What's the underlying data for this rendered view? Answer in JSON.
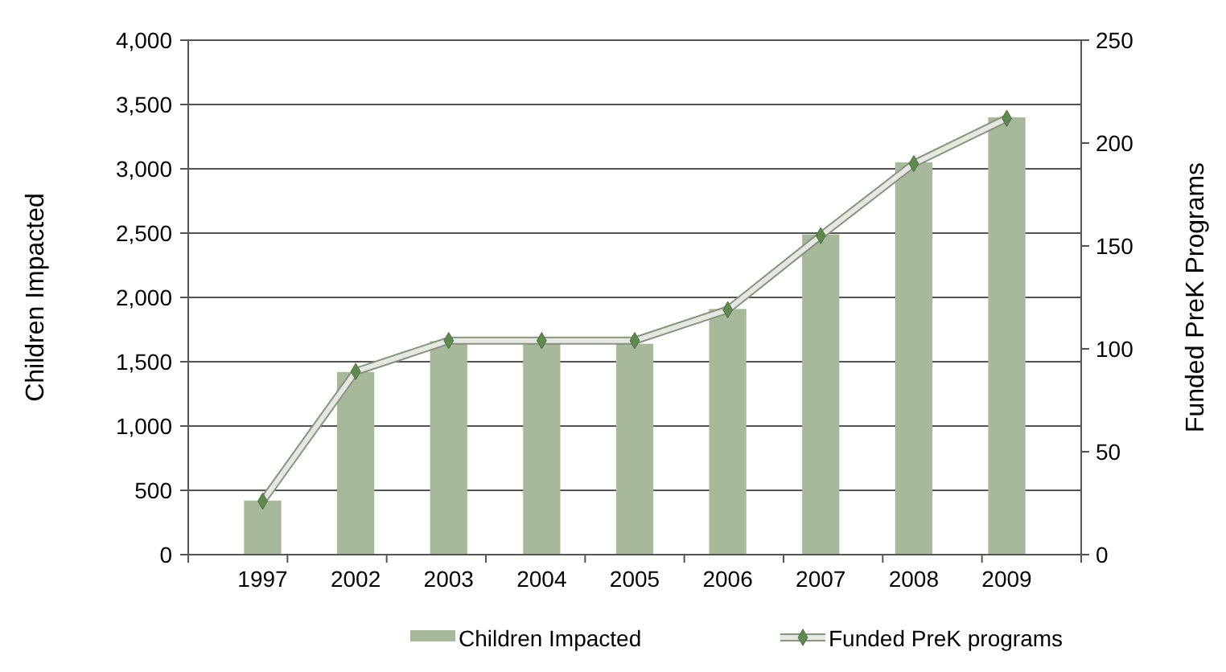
{
  "chart_data": {
    "type": "bar",
    "categories": [
      "1997",
      "2002",
      "2003",
      "2004",
      "2005",
      "2006",
      "2007",
      "2008",
      "2009"
    ],
    "ylabel": "Children Impacted",
    "y2label": "Funded PreK Programs",
    "series": [
      {
        "name": "Children Impacted",
        "color": "#a7b99a",
        "values": [
          420,
          1420,
          1660,
          1640,
          1640,
          1910,
          2490,
          3050,
          3400
        ]
      },
      {
        "name": "Funded PreK programs",
        "type": "line",
        "axis": "y2",
        "color": "#e6e9e2",
        "marker": "diamond",
        "values": [
          26,
          89,
          104,
          104,
          104,
          119,
          155,
          190,
          212
        ]
      }
    ],
    "ylim": [
      0,
      4000
    ],
    "yticks": [
      {
        "value": 0,
        "label": "0"
      },
      {
        "value": 500,
        "label": "500"
      },
      {
        "value": 1000,
        "label": "1,000"
      },
      {
        "value": 1500,
        "label": "1,500"
      },
      {
        "value": 2000,
        "label": "2,000"
      },
      {
        "value": 2500,
        "label": "2,500"
      },
      {
        "value": 3000,
        "label": "3,000"
      },
      {
        "value": 3500,
        "label": "3,500"
      },
      {
        "value": 4000,
        "label": "4,000"
      }
    ],
    "y2lim": [
      0,
      250
    ],
    "y2ticks": [
      0,
      50,
      100,
      150,
      200,
      250
    ],
    "grid": "y",
    "legend": "bottom"
  }
}
